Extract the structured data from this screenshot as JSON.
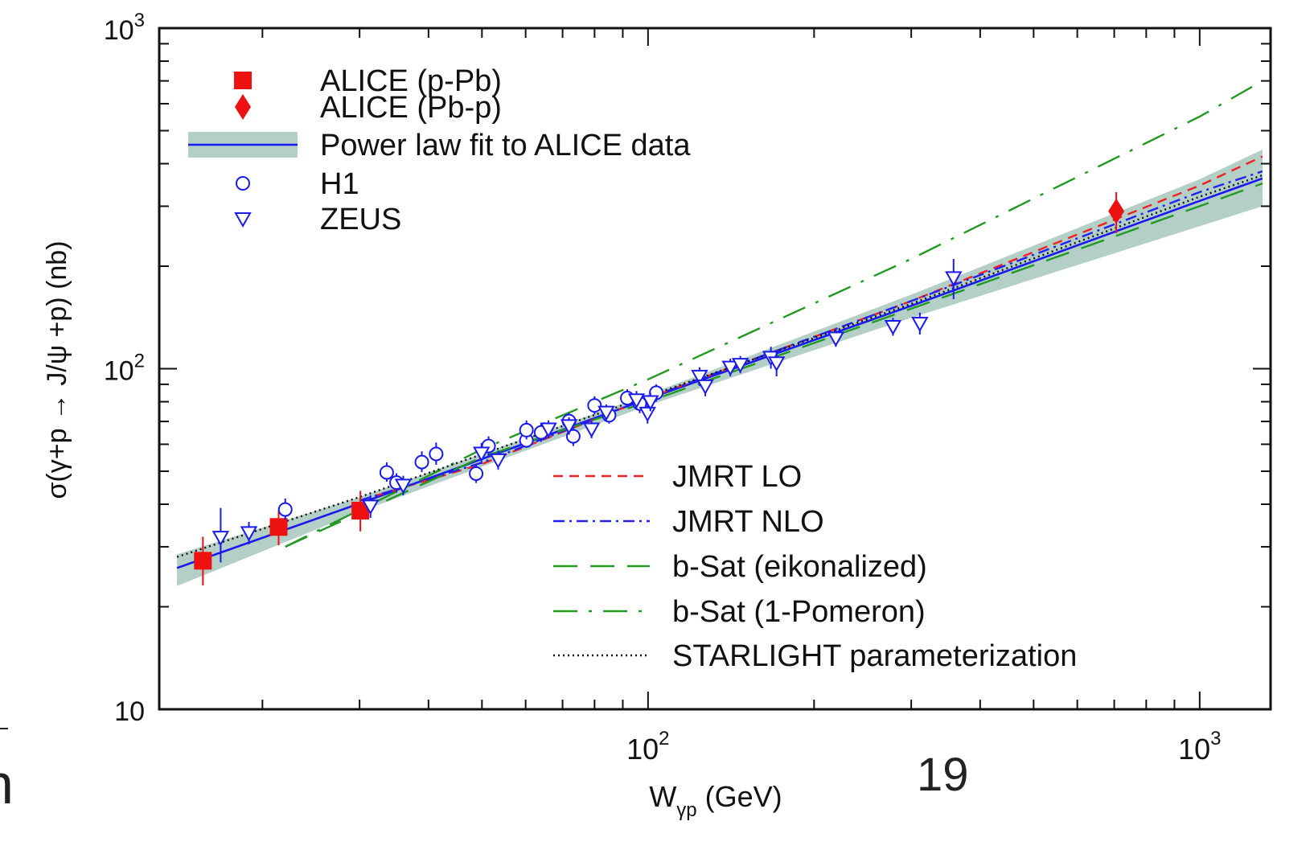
{
  "page": {
    "page_number": "19"
  },
  "chart_data": {
    "type": "scatter",
    "title": "",
    "xlabel_main": "W",
    "xlabel_sub": "γp",
    "xlabel_unit": " (GeV)",
    "ylabel": "σ(γ+p → J/ψ +p) (nb)",
    "x_scale": "log",
    "y_scale": "log",
    "xlim": [
      13,
      1300
    ],
    "ylim": [
      10,
      1000
    ],
    "x_ticks": [
      {
        "value": 100,
        "base": "10",
        "exp": "2"
      },
      {
        "value": 1000,
        "base": "10",
        "exp": "3"
      }
    ],
    "y_ticks": [
      {
        "value": 10,
        "base": "10",
        "exp": ""
      },
      {
        "value": 100,
        "base": "10",
        "exp": "2"
      },
      {
        "value": 1000,
        "base": "10",
        "exp": "3"
      }
    ],
    "colors": {
      "alice": "#ee1111",
      "hera": "#1a1aee",
      "fit_band": "#b3cfc6",
      "jmrt_lo": "#ee2222",
      "jmrt_nlo": "#2222ee",
      "bsat": "#229922",
      "starlight": "#111111"
    },
    "legend_top": [
      {
        "label": "ALICE (p-Pb)",
        "marker": "square"
      },
      {
        "label": "ALICE (Pb-p)",
        "marker": "diamond"
      },
      {
        "label": "Power law fit to ALICE data",
        "marker": "band"
      },
      {
        "label": "H1",
        "marker": "circle"
      },
      {
        "label": "ZEUS",
        "marker": "triangle-down"
      }
    ],
    "legend_bottom": [
      {
        "label": "JMRT LO",
        "style": "short-dash"
      },
      {
        "label": "JMRT NLO",
        "style": "dash-dot"
      },
      {
        "label": "b-Sat (eikonalized)",
        "style": "long-dash"
      },
      {
        "label": "b-Sat (1-Pomeron)",
        "style": "long-dash-dot"
      },
      {
        "label": "STARLIGHT parameterization",
        "style": "dotted"
      }
    ],
    "series": [
      {
        "name": "ALICE (p-Pb)",
        "marker": "square",
        "points": [
          {
            "x": 15.6,
            "y": 27.3,
            "yerr": [
              4.2,
              4.8
            ]
          },
          {
            "x": 21.4,
            "y": 34.3,
            "yerr": [
              4.0,
              4.2
            ]
          },
          {
            "x": 30.1,
            "y": 38.3,
            "yerr": [
              5.0,
              5.5
            ]
          }
        ]
      },
      {
        "name": "ALICE (Pb-p)",
        "marker": "diamond",
        "points": [
          {
            "x": 706,
            "y": 290,
            "yerr": [
              40,
              40
            ]
          }
        ]
      },
      {
        "name": "H1",
        "marker": "circle",
        "points": [
          {
            "x": 22.0,
            "y": 38.6,
            "yerr": [
              2.5,
              3.0
            ]
          },
          {
            "x": 33.6,
            "y": 49.6,
            "yerr": [
              3.0,
              3.5
            ]
          },
          {
            "x": 35.0,
            "y": 46.3,
            "yerr": [
              3.0,
              3.0
            ]
          },
          {
            "x": 38.9,
            "y": 53.2,
            "yerr": [
              3.5,
              4.0
            ]
          },
          {
            "x": 41.3,
            "y": 56.2,
            "yerr": [
              4.0,
              4.5
            ]
          },
          {
            "x": 48.8,
            "y": 49.2,
            "yerr": [
              3.0,
              3.0
            ]
          },
          {
            "x": 51.4,
            "y": 59.3,
            "yerr": [
              4.0,
              4.0
            ]
          },
          {
            "x": 60.2,
            "y": 61.6,
            "yerr": [
              3.0,
              3.5
            ]
          },
          {
            "x": 60.2,
            "y": 66.0,
            "yerr": [
              4.0,
              4.5
            ]
          },
          {
            "x": 64.0,
            "y": 65.0,
            "yerr": [
              4.0,
              4.0
            ]
          },
          {
            "x": 71.9,
            "y": 70.2,
            "yerr": [
              4.0,
              4.0
            ]
          },
          {
            "x": 73.2,
            "y": 63.3,
            "yerr": [
              4.0,
              4.0
            ]
          },
          {
            "x": 80.0,
            "y": 78.0,
            "yerr": [
              4.5,
              5.0
            ]
          },
          {
            "x": 85.0,
            "y": 73.0,
            "yerr": [
              4.0,
              4.5
            ]
          },
          {
            "x": 91.7,
            "y": 82.0,
            "yerr": [
              5.0,
              5.0
            ]
          },
          {
            "x": 96.6,
            "y": 79.0,
            "yerr": [
              5.0,
              5.0
            ]
          },
          {
            "x": 103.5,
            "y": 85.0,
            "yerr": [
              5.0,
              5.0
            ]
          }
        ]
      },
      {
        "name": "ZEUS",
        "marker": "triangle-down",
        "points": [
          {
            "x": 16.8,
            "y": 32.0,
            "yerr": [
              5.0,
              7.0
            ]
          },
          {
            "x": 18.9,
            "y": 33.0,
            "yerr": [
              2.5,
              2.5
            ]
          },
          {
            "x": 31.4,
            "y": 39.5,
            "yerr": [
              3.0,
              3.0
            ]
          },
          {
            "x": 36.0,
            "y": 45.5,
            "yerr": [
              3.0,
              3.0
            ]
          },
          {
            "x": 49.9,
            "y": 56.5,
            "yerr": [
              4.0,
              4.0
            ]
          },
          {
            "x": 53.5,
            "y": 54.0,
            "yerr": [
              3.5,
              3.5
            ]
          },
          {
            "x": 66.0,
            "y": 66.5,
            "yerr": [
              4.0,
              4.0
            ]
          },
          {
            "x": 71.9,
            "y": 68.0,
            "yerr": [
              4.0,
              4.0
            ]
          },
          {
            "x": 79.0,
            "y": 66.5,
            "yerr": [
              4.0,
              4.0
            ]
          },
          {
            "x": 84.0,
            "y": 74.5,
            "yerr": [
              4.0,
              4.0
            ]
          },
          {
            "x": 95.3,
            "y": 81.0,
            "yerr": [
              5.0,
              5.0
            ]
          },
          {
            "x": 99.8,
            "y": 74.0,
            "yerr": [
              5.0,
              5.0
            ]
          },
          {
            "x": 101.0,
            "y": 80.0,
            "yerr": [
              5.0,
              5.0
            ]
          },
          {
            "x": 124.0,
            "y": 95.0,
            "yerr": [
              6.0,
              6.0
            ]
          },
          {
            "x": 127.0,
            "y": 89.0,
            "yerr": [
              6.0,
              6.0
            ]
          },
          {
            "x": 141.0,
            "y": 101.0,
            "yerr": [
              6.0,
              6.0
            ]
          },
          {
            "x": 147.0,
            "y": 103.0,
            "yerr": [
              6.0,
              6.0
            ]
          },
          {
            "x": 167.0,
            "y": 108.0,
            "yerr": [
              8.0,
              8.0
            ]
          },
          {
            "x": 171.0,
            "y": 104.0,
            "yerr": [
              9.0,
              9.0
            ]
          },
          {
            "x": 219.0,
            "y": 123.0,
            "yerr": [
              7.0,
              7.0
            ]
          },
          {
            "x": 278.0,
            "y": 133.0,
            "yerr": [
              8.0,
              8.0
            ]
          },
          {
            "x": 311.0,
            "y": 136.0,
            "yerr": [
              10.0,
              10.0
            ]
          },
          {
            "x": 358.0,
            "y": 185.0,
            "yerr": [
              25.0,
              25.0
            ]
          }
        ]
      }
    ],
    "curves": [
      {
        "name": "Power law fit to ALICE data",
        "style": "solid",
        "points": [
          [
            14,
            26
          ],
          [
            30,
            40.2
          ],
          [
            100,
            81.6
          ],
          [
            300,
            153
          ],
          [
            1000,
            311
          ],
          [
            1300,
            362
          ]
        ]
      },
      {
        "name": "Power law fit band upper",
        "style": "band",
        "points": [
          [
            14,
            28.5
          ],
          [
            30,
            42
          ],
          [
            100,
            84
          ],
          [
            300,
            165
          ],
          [
            1000,
            360
          ],
          [
            1300,
            440
          ]
        ]
      },
      {
        "name": "Power law fit band lower",
        "style": "band",
        "points": [
          [
            14,
            23.0
          ],
          [
            30,
            38.0
          ],
          [
            100,
            78
          ],
          [
            300,
            141
          ],
          [
            1000,
            262
          ],
          [
            1300,
            300
          ]
        ]
      },
      {
        "name": "JMRT LO",
        "style": "short-dash",
        "points": [
          [
            30,
            41
          ],
          [
            50,
            52.5
          ],
          [
            100,
            82
          ],
          [
            300,
            158
          ],
          [
            1000,
            345
          ],
          [
            1300,
            420
          ]
        ]
      },
      {
        "name": "JMRT NLO",
        "style": "dash-dot",
        "points": [
          [
            30,
            41
          ],
          [
            50,
            53
          ],
          [
            100,
            82
          ],
          [
            300,
            158
          ],
          [
            1000,
            330
          ],
          [
            1300,
            380
          ]
        ]
      },
      {
        "name": "b-Sat (eikonalized)",
        "style": "long-dash",
        "points": [
          [
            22,
            30
          ],
          [
            50,
            55
          ],
          [
            100,
            80
          ],
          [
            300,
            150
          ],
          [
            1000,
            300
          ],
          [
            1300,
            350
          ]
        ]
      },
      {
        "name": "b-Sat (1-Pomeron)",
        "style": "long-dash-dot",
        "points": [
          [
            22,
            30
          ],
          [
            50,
            58
          ],
          [
            100,
            93
          ],
          [
            300,
            210
          ],
          [
            1000,
            550
          ],
          [
            1300,
            700
          ]
        ]
      },
      {
        "name": "STARLIGHT parameterization",
        "style": "dotted",
        "points": [
          [
            14,
            28
          ],
          [
            30,
            42
          ],
          [
            100,
            83
          ],
          [
            300,
            155
          ],
          [
            1000,
            320
          ],
          [
            1300,
            370
          ]
        ]
      }
    ]
  }
}
